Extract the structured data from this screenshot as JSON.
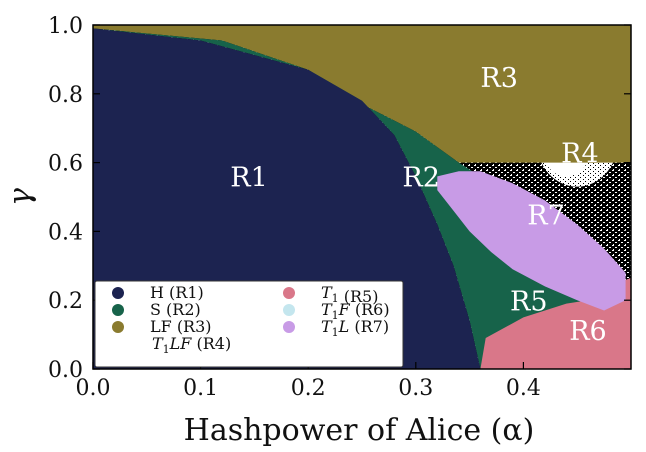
{
  "chart_data": {
    "type": "heatmap",
    "xlabel": "Hashpower of Alice (α)",
    "ylabel": "γ",
    "xlim": [
      0.0,
      0.5
    ],
    "ylim": [
      0.0,
      1.0
    ],
    "x_ticks": [
      "0.0",
      "0.1",
      "0.2",
      "0.3",
      "0.4"
    ],
    "x_tick_values": [
      0.0,
      0.1,
      0.2,
      0.3,
      0.4
    ],
    "y_ticks": [
      "0.0",
      "0.2",
      "0.4",
      "0.6",
      "0.8",
      "1.0"
    ],
    "y_tick_values": [
      0.0,
      0.2,
      0.4,
      0.6,
      0.8,
      1.0
    ],
    "grid": false,
    "legend_position": "bottom-left",
    "regions": [
      {
        "key": "R1",
        "legend": "H (R1)",
        "label": "R1",
        "color": "#1c2350",
        "label_at": [
          0.29,
          0.53
        ]
      },
      {
        "key": "R2",
        "legend": "S (R2)",
        "label": "R2",
        "color": "#17634a",
        "label_at": [
          0.61,
          0.53
        ]
      },
      {
        "key": "R3",
        "legend": "LF (R3)",
        "label": "R3",
        "color": "#8a7b2f",
        "label_at": [
          0.755,
          0.82
        ]
      },
      {
        "key": "R4",
        "legend": "T1LF (R4)",
        "legend_parts": [
          "T",
          "1",
          "LF",
          " (R4)"
        ],
        "label": "R4",
        "color": "#ffffff",
        "label_at": [
          0.905,
          0.6
        ]
      },
      {
        "key": "R5",
        "legend": "T1 (R5)",
        "legend_parts": [
          "T",
          "1",
          "",
          " (R5)"
        ],
        "label": "R5",
        "color": "#d97789",
        "label_at": [
          0.81,
          0.17
        ]
      },
      {
        "key": "R6",
        "legend": "T1F (R6)",
        "legend_parts": [
          "T",
          "1",
          "F",
          " (R6)"
        ],
        "label": "R6",
        "color": "#c4e6ee",
        "label_at": [
          0.92,
          0.085
        ]
      },
      {
        "key": "R7",
        "legend": "T1L (R7)",
        "legend_parts": [
          "T",
          "1",
          "L",
          " (R7)"
        ],
        "label": "R7",
        "color": "#c89be6",
        "label_at": [
          0.842,
          0.42
        ]
      }
    ],
    "boundaries": {
      "R1_edge": [
        [
          0.0,
          0.99
        ],
        [
          0.1,
          0.955
        ],
        [
          0.2,
          0.87
        ],
        [
          0.25,
          0.78
        ],
        [
          0.28,
          0.68
        ],
        [
          0.3,
          0.56
        ],
        [
          0.32,
          0.42
        ],
        [
          0.335,
          0.3
        ],
        [
          0.35,
          0.14
        ],
        [
          0.36,
          0.0
        ]
      ],
      "R2_edge": [
        [
          0.0,
          0.99
        ],
        [
          0.12,
          0.955
        ],
        [
          0.2,
          0.87
        ],
        [
          0.25,
          0.77
        ],
        [
          0.3,
          0.69
        ],
        [
          0.34,
          0.6
        ],
        [
          0.37,
          0.54
        ],
        [
          0.4,
          0.45
        ],
        [
          0.43,
          0.34
        ],
        [
          0.45,
          0.26
        ],
        [
          0.46,
          0.22
        ],
        [
          0.47,
          0.21
        ]
      ],
      "R7_outline": [
        [
          0.42,
          0.56
        ],
        [
          0.45,
          0.57
        ],
        [
          0.5,
          0.57
        ],
        [
          0.56,
          0.545
        ],
        [
          0.62,
          0.5
        ],
        [
          0.66,
          0.45
        ],
        [
          0.7,
          0.39
        ],
        [
          0.735,
          0.32
        ],
        [
          0.76,
          0.28
        ],
        [
          0.76,
          0.24
        ],
        [
          0.74,
          0.2
        ],
        [
          0.7,
          0.19
        ],
        [
          0.62,
          0.21
        ],
        [
          0.5,
          0.3
        ],
        [
          0.455,
          0.39
        ],
        [
          0.43,
          0.47
        ],
        [
          0.42,
          0.51
        ]
      ],
      "R5_outline": [
        [
          0.46,
          0.2
        ],
        [
          0.48,
          0.24
        ],
        [
          0.52,
          0.29
        ],
        [
          0.56,
          0.33
        ],
        [
          0.595,
          0.29
        ],
        [
          0.625,
          0.22
        ],
        [
          0.635,
          0.12
        ],
        [
          0.64,
          0.0
        ],
        [
          0.36,
          0.0
        ],
        [
          0.365,
          0.09
        ],
        [
          0.4,
          0.15
        ],
        [
          0.44,
          0.19
        ]
      ]
    }
  }
}
